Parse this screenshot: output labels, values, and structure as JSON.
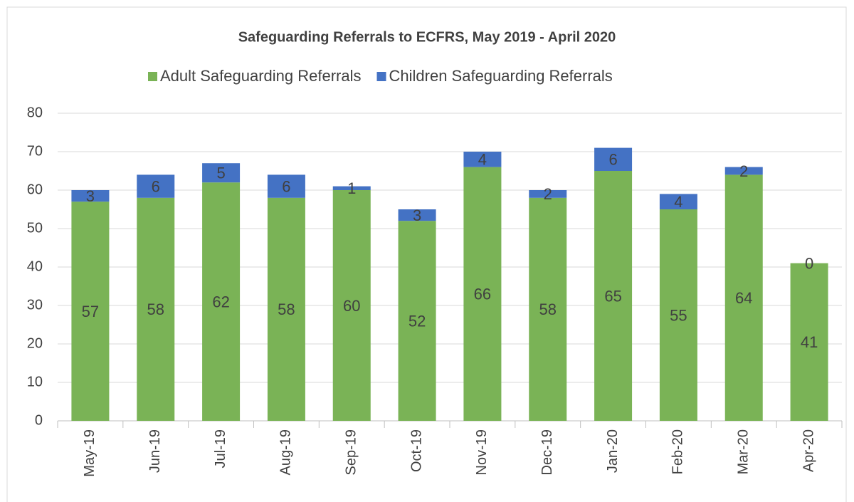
{
  "chart_data": {
    "type": "stacked_bar",
    "title": "Safeguarding Referrals to ECFRS, May 2019 - April 2020",
    "categories": [
      "May-19",
      "Jun-19",
      "Jul-19",
      "Aug-19",
      "Sep-19",
      "Oct-19",
      "Nov-19",
      "Dec-19",
      "Jan-20",
      "Feb-20",
      "Mar-20",
      "Apr-20"
    ],
    "series": [
      {
        "name": "Adult Safeguarding Referrals",
        "color": "#7ab356",
        "values": [
          57,
          58,
          62,
          58,
          60,
          52,
          66,
          58,
          65,
          55,
          64,
          41
        ]
      },
      {
        "name": "Children Safeguarding Referrals",
        "color": "#4472c4",
        "values": [
          3,
          6,
          5,
          6,
          1,
          3,
          4,
          2,
          6,
          4,
          2,
          0
        ]
      }
    ],
    "ylim": [
      0,
      80
    ],
    "yticks": [
      0,
      10,
      20,
      30,
      40,
      50,
      60,
      70,
      80
    ],
    "grid": true,
    "legend": "top"
  }
}
